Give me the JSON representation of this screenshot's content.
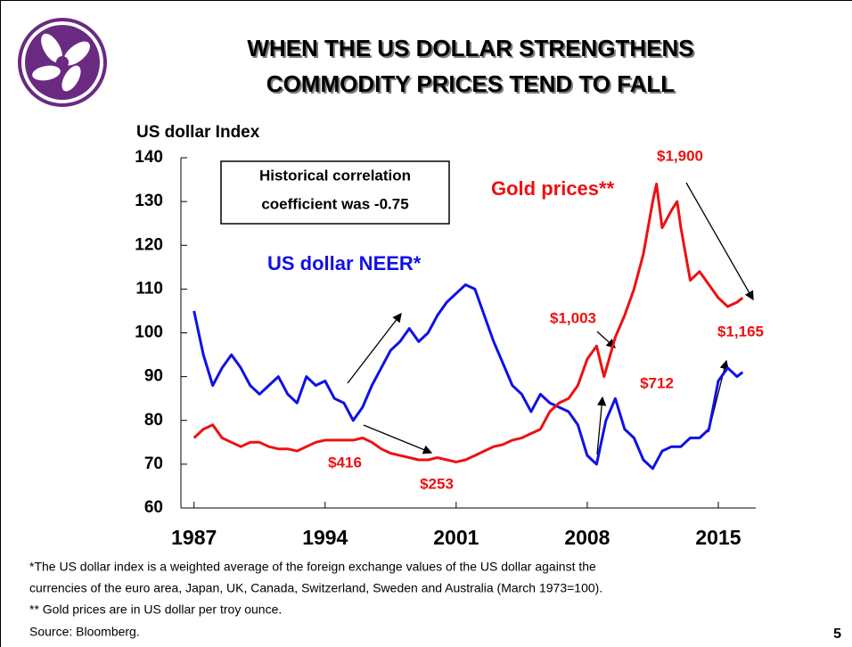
{
  "chart_data": {
    "type": "line",
    "title": [
      "WHEN THE US DOLLAR STRENGTHENS",
      "COMMODITY PRICES TEND TO FALL"
    ],
    "y_axis_label": "US dollar Index",
    "ylim": [
      60,
      140
    ],
    "yticks": [
      60,
      70,
      80,
      90,
      100,
      110,
      120,
      130,
      140
    ],
    "xlim": [
      1986.3,
      2017
    ],
    "xticks": [
      1987,
      1994,
      2001,
      2008,
      2015
    ],
    "grid": false,
    "annotation_box": [
      "Historical correlation",
      "coefficient was -0.75"
    ],
    "series": [
      {
        "name": "US dollar NEER*",
        "color": "#1010e8",
        "x": [
          1987.0,
          1987.5,
          1988.0,
          1988.5,
          1989.0,
          1989.5,
          1990.0,
          1990.5,
          1991.0,
          1991.5,
          1992.0,
          1992.5,
          1993.0,
          1993.5,
          1994.0,
          1994.5,
          1995.0,
          1995.5,
          1996.0,
          1996.5,
          1997.0,
          1997.5,
          1998.0,
          1998.5,
          1999.0,
          1999.5,
          2000.0,
          2000.5,
          2001.0,
          2001.5,
          2002.0,
          2002.5,
          2003.0,
          2003.5,
          2004.0,
          2004.5,
          2005.0,
          2005.5,
          2006.0,
          2006.5,
          2007.0,
          2007.5,
          2008.0,
          2008.5,
          2009.0,
          2009.5,
          2010.0,
          2010.5,
          2011.0,
          2011.5,
          2012.0,
          2012.5,
          2013.0,
          2013.5,
          2014.0,
          2014.5,
          2015.0,
          2015.5,
          2016.0,
          2016.3
        ],
        "values": [
          105,
          95,
          88,
          92,
          95,
          92,
          88,
          86,
          88,
          90,
          86,
          84,
          90,
          88,
          89,
          85,
          84,
          80,
          83,
          88,
          92,
          96,
          98,
          101,
          98,
          100,
          104,
          107,
          109,
          111,
          110,
          104,
          98,
          93,
          88,
          86,
          82,
          86,
          84,
          83,
          82,
          79,
          72,
          70,
          80,
          85,
          78,
          76,
          71,
          69,
          73,
          74,
          74,
          76,
          76,
          78,
          89,
          92,
          90,
          91
        ]
      },
      {
        "name": "Gold prices**",
        "color": "#ee1010",
        "x": [
          1987.0,
          1987.5,
          1988.0,
          1988.5,
          1989.0,
          1989.5,
          1990.0,
          1990.5,
          1991.0,
          1991.5,
          1992.0,
          1992.5,
          1993.0,
          1993.5,
          1994.0,
          1994.5,
          1995.0,
          1995.5,
          1996.0,
          1996.5,
          1997.0,
          1997.5,
          1998.0,
          1998.5,
          1999.0,
          1999.5,
          2000.0,
          2000.5,
          2001.0,
          2001.5,
          2002.0,
          2002.5,
          2003.0,
          2003.5,
          2004.0,
          2004.5,
          2005.0,
          2005.5,
          2006.0,
          2006.5,
          2007.0,
          2007.5,
          2008.0,
          2008.5,
          2008.9,
          2009.5,
          2010.0,
          2010.5,
          2011.0,
          2011.5,
          2011.7,
          2012.0,
          2012.5,
          2012.8,
          2013.0,
          2013.5,
          2014.0,
          2014.5,
          2015.0,
          2015.5,
          2016.0,
          2016.3
        ],
        "values": [
          76,
          78,
          79,
          76,
          75,
          74,
          75,
          75,
          74,
          73.5,
          73.5,
          73,
          74,
          75,
          75.5,
          75.5,
          75.5,
          75.5,
          76,
          75,
          73.5,
          72.5,
          72,
          71.5,
          71,
          71,
          71.5,
          71,
          70.5,
          71,
          72,
          73,
          74,
          74.5,
          75.5,
          76,
          77,
          78,
          82,
          84,
          85,
          88,
          94,
          97,
          90,
          99,
          104,
          110,
          118,
          130,
          134,
          124,
          128,
          130,
          124,
          112,
          114,
          111,
          108,
          106,
          107,
          108
        ]
      }
    ],
    "annotations": [
      "$1,900",
      "$1,003",
      "$712",
      "$1,165",
      "$416",
      "$253"
    ]
  },
  "footnotes": [
    "*The US dollar index is a weighted average of the foreign exchange values of the US dollar against the",
    "currencies of the euro area, Japan, UK, Canada, Switzerland, Sweden and Australia (March 1973=100).",
    "** Gold prices are in US dollar per troy ounce."
  ],
  "source": "Source: Bloomberg.",
  "page_number": "5"
}
